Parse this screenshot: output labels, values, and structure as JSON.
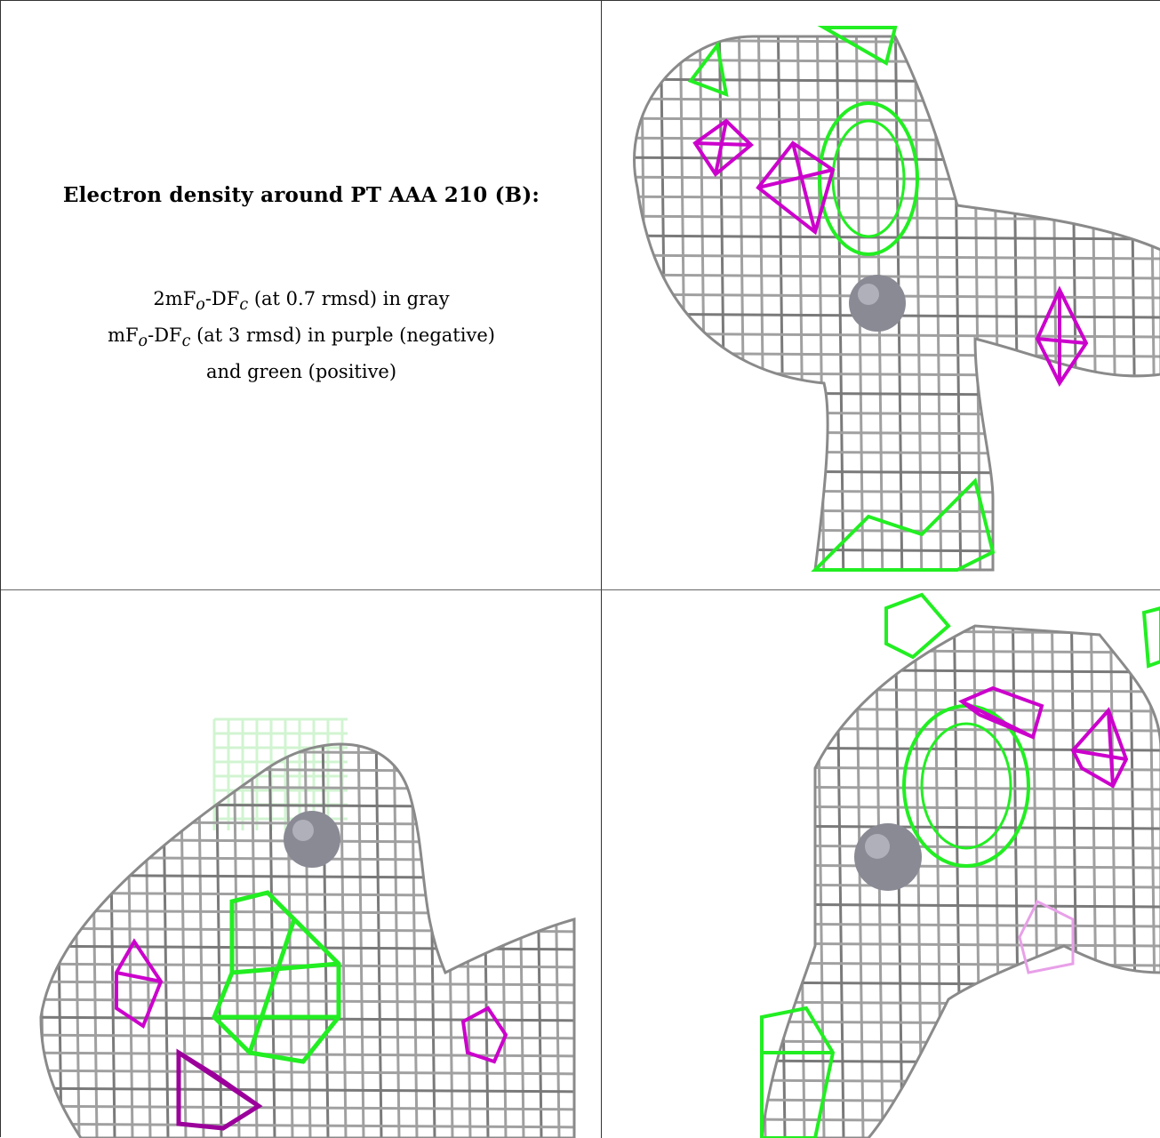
{
  "caption": {
    "title": "Electron density around PT AAA 210 (B):",
    "line1": {
      "pre": "2mF",
      "sub1": "o",
      "mid": "-DF",
      "sub2": "c",
      "post": " (at 0.7 rmsd) in gray"
    },
    "line2": {
      "pre": "mF",
      "sub1": "o",
      "mid": "-DF",
      "sub2": "c",
      "post": " (at 3 rmsd) in purple (negative)"
    },
    "line3": "and green (positive)"
  },
  "colors": {
    "map_2fofc": "#a8a8a8",
    "map_2fofc_dark": "#7a7a7a",
    "diff_negative": "#cc00cc",
    "diff_positive": "#22ee22",
    "atom": "#8a8a95"
  },
  "panels": [
    {
      "name": "view-top-right",
      "content": "density-mesh"
    },
    {
      "name": "view-bottom-left",
      "content": "density-mesh"
    },
    {
      "name": "view-bottom-right",
      "content": "density-mesh"
    }
  ]
}
